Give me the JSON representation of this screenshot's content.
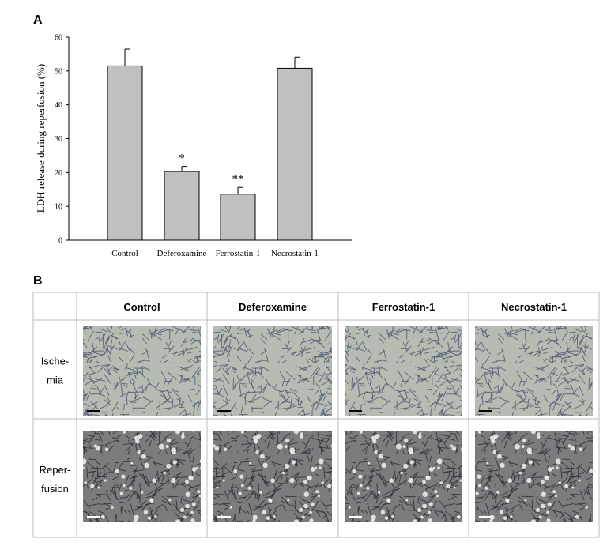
{
  "chart_data": {
    "type": "bar",
    "panel_label": "A",
    "y_label": "LDH release during reperfusion (%)",
    "categories": [
      "Control",
      "Deferoxamine",
      "Ferrostatin-1",
      "Necrostatin-1"
    ],
    "values": [
      51.5,
      20.3,
      13.6,
      50.8
    ],
    "errors": [
      5,
      1.5,
      2,
      3.3
    ],
    "significance": [
      null,
      "*",
      "**",
      null
    ],
    "color": "#c0c0c0",
    "ylim": [
      0,
      60
    ],
    "yticks": [
      0,
      10,
      20,
      30,
      40,
      50,
      60
    ],
    "grid": false
  },
  "panel_b": {
    "label": "B",
    "columns": [
      "Control",
      "Deferoxamine",
      "Ferrostatin-1",
      "Necrostatin-1"
    ],
    "rows": [
      [
        "Ische-",
        "mia"
      ],
      [
        "Reper-",
        "fusion"
      ]
    ]
  }
}
